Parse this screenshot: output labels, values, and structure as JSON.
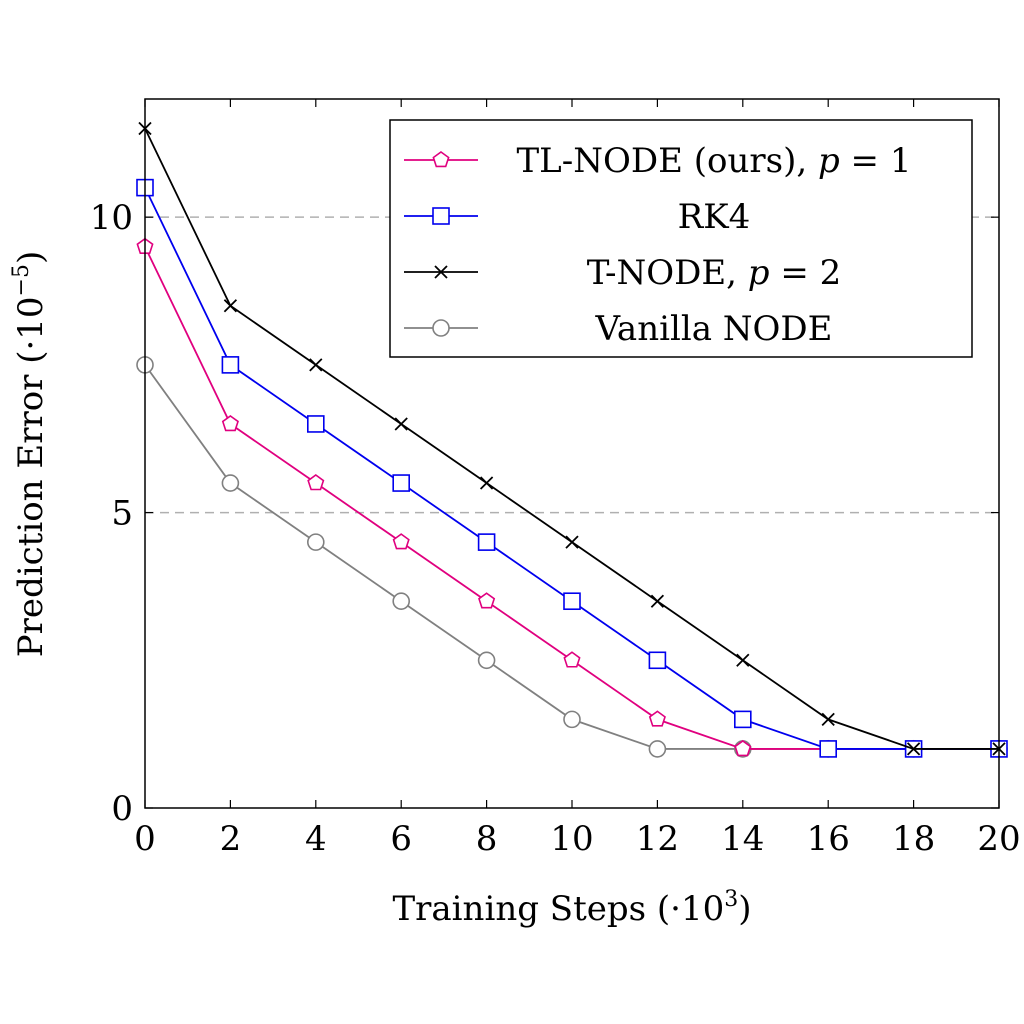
{
  "chart_data": {
    "type": "line",
    "xlabel": "Training Steps (·10",
    "xlabel_sup": "3",
    "xlabel_end": ")",
    "ylabel": "Prediction Error (·10",
    "ylabel_sup": "−5",
    "ylabel_end": ")",
    "xlim": [
      0,
      20
    ],
    "ylim": [
      0,
      12
    ],
    "x_ticks": [
      0,
      2,
      4,
      6,
      8,
      10,
      12,
      14,
      16,
      18,
      20
    ],
    "y_ticks": [
      0,
      5,
      10
    ],
    "grid": "horizontal dashed at y=5 and y=10",
    "legend_position": "top-right",
    "x": [
      0,
      2,
      4,
      6,
      8,
      10,
      12,
      14,
      16,
      18,
      20
    ],
    "series": [
      {
        "name": "TL-NODE (ours), p = 1",
        "name_main": "TL-NODE (ours), ",
        "name_var": "p",
        "name_rest": " = 1",
        "color": "#e0007f",
        "marker": "pentagon",
        "values": [
          9.5,
          6.5,
          5.5,
          4.5,
          3.5,
          2.5,
          1.5,
          1.0,
          1.0,
          1.0,
          1.0
        ]
      },
      {
        "name": "RK4",
        "name_main": "RK4",
        "name_var": "",
        "name_rest": "",
        "color": "#0000ee",
        "marker": "square",
        "values": [
          10.5,
          7.5,
          6.5,
          5.5,
          4.5,
          3.5,
          2.5,
          1.5,
          1.0,
          1.0,
          1.0
        ]
      },
      {
        "name": "T-NODE, p = 2",
        "name_main": "T-NODE, ",
        "name_var": "p",
        "name_rest": " = 2",
        "color": "#000000",
        "marker": "cross",
        "values": [
          11.5,
          8.5,
          7.5,
          6.5,
          5.5,
          4.5,
          3.5,
          2.5,
          1.5,
          1.0,
          1.0
        ]
      },
      {
        "name": "Vanilla NODE",
        "name_main": "Vanilla NODE",
        "name_var": "",
        "name_rest": "",
        "color": "#808080",
        "marker": "circle",
        "values": [
          7.5,
          5.5,
          4.5,
          3.5,
          2.5,
          1.5,
          1.0,
          1.0,
          1.0,
          1.0,
          1.0
        ]
      }
    ]
  }
}
